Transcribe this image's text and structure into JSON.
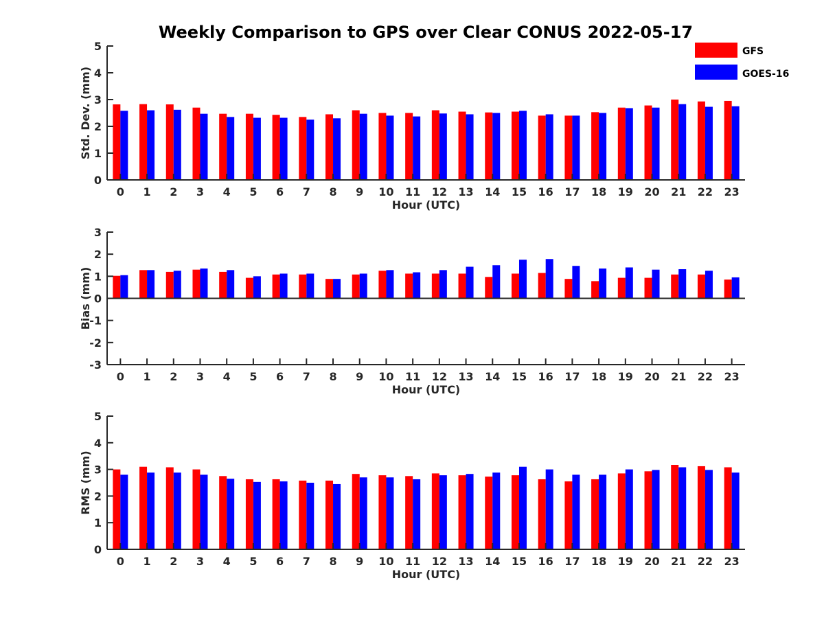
{
  "title": "Weekly Comparison to GPS over Clear CONUS 2022-05-17",
  "legend": [
    {
      "name": "GFS",
      "color": "#ff0000"
    },
    {
      "name": "GOES-16",
      "color": "#0000ff"
    }
  ],
  "chart_data": [
    {
      "type": "bar",
      "title": "",
      "xlabel": "Hour (UTC)",
      "ylabel": "Std. Dev. (mm)",
      "ylim": [
        0,
        5
      ],
      "yticks": [
        "0",
        "1",
        "2",
        "3",
        "4",
        "5"
      ],
      "categories": [
        "0",
        "1",
        "2",
        "3",
        "4",
        "5",
        "6",
        "7",
        "8",
        "9",
        "10",
        "11",
        "12",
        "13",
        "14",
        "15",
        "16",
        "17",
        "18",
        "19",
        "20",
        "21",
        "22",
        "23"
      ],
      "legend_position": "top-right",
      "series": [
        {
          "name": "GFS",
          "color": "#ff0000",
          "values": [
            2.82,
            2.83,
            2.82,
            2.7,
            2.47,
            2.47,
            2.43,
            2.35,
            2.45,
            2.6,
            2.5,
            2.5,
            2.6,
            2.55,
            2.52,
            2.55,
            2.4,
            2.4,
            2.53,
            2.7,
            2.78,
            3.0,
            2.93,
            2.95
          ]
        },
        {
          "name": "GOES-16",
          "color": "#0000ff",
          "values": [
            2.58,
            2.6,
            2.62,
            2.47,
            2.35,
            2.32,
            2.32,
            2.25,
            2.3,
            2.47,
            2.4,
            2.37,
            2.48,
            2.45,
            2.5,
            2.58,
            2.45,
            2.4,
            2.5,
            2.68,
            2.7,
            2.83,
            2.73,
            2.75
          ]
        }
      ]
    },
    {
      "type": "bar",
      "title": "",
      "xlabel": "Hour (UTC)",
      "ylabel": "Bias (mm)",
      "ylim": [
        -3,
        3
      ],
      "yticks": [
        "-3",
        "-2",
        "-1",
        "0",
        "1",
        "2",
        "3"
      ],
      "categories": [
        "0",
        "1",
        "2",
        "3",
        "4",
        "5",
        "6",
        "7",
        "8",
        "9",
        "10",
        "11",
        "12",
        "13",
        "14",
        "15",
        "16",
        "17",
        "18",
        "19",
        "20",
        "21",
        "22",
        "23"
      ],
      "series": [
        {
          "name": "GFS",
          "color": "#ff0000",
          "values": [
            1.02,
            1.28,
            1.2,
            1.3,
            1.2,
            0.93,
            1.08,
            1.08,
            0.88,
            1.08,
            1.25,
            1.12,
            1.12,
            1.12,
            0.97,
            1.12,
            1.15,
            0.88,
            0.78,
            0.93,
            0.93,
            1.08,
            1.08,
            0.85
          ]
        },
        {
          "name": "GOES-16",
          "color": "#0000ff",
          "values": [
            1.05,
            1.28,
            1.25,
            1.35,
            1.28,
            1.0,
            1.12,
            1.12,
            0.88,
            1.12,
            1.28,
            1.18,
            1.28,
            1.43,
            1.5,
            1.75,
            1.78,
            1.47,
            1.35,
            1.4,
            1.3,
            1.32,
            1.25,
            0.95
          ]
        }
      ]
    },
    {
      "type": "bar",
      "title": "",
      "xlabel": "Hour (UTC)",
      "ylabel": "RMS (mm)",
      "ylim": [
        0,
        5
      ],
      "yticks": [
        "0",
        "1",
        "2",
        "3",
        "4",
        "5"
      ],
      "categories": [
        "0",
        "1",
        "2",
        "3",
        "4",
        "5",
        "6",
        "7",
        "8",
        "9",
        "10",
        "11",
        "12",
        "13",
        "14",
        "15",
        "16",
        "17",
        "18",
        "19",
        "20",
        "21",
        "22",
        "23"
      ],
      "series": [
        {
          "name": "GFS",
          "color": "#ff0000",
          "values": [
            3.0,
            3.1,
            3.08,
            3.0,
            2.75,
            2.63,
            2.63,
            2.58,
            2.58,
            2.83,
            2.78,
            2.75,
            2.85,
            2.78,
            2.73,
            2.78,
            2.63,
            2.55,
            2.63,
            2.85,
            2.93,
            3.17,
            3.12,
            3.08
          ]
        },
        {
          "name": "GOES-16",
          "color": "#0000ff",
          "values": [
            2.8,
            2.88,
            2.88,
            2.8,
            2.65,
            2.53,
            2.55,
            2.5,
            2.45,
            2.7,
            2.7,
            2.63,
            2.78,
            2.83,
            2.88,
            3.1,
            3.0,
            2.8,
            2.8,
            3.0,
            2.98,
            3.08,
            2.98,
            2.88
          ]
        }
      ]
    }
  ]
}
